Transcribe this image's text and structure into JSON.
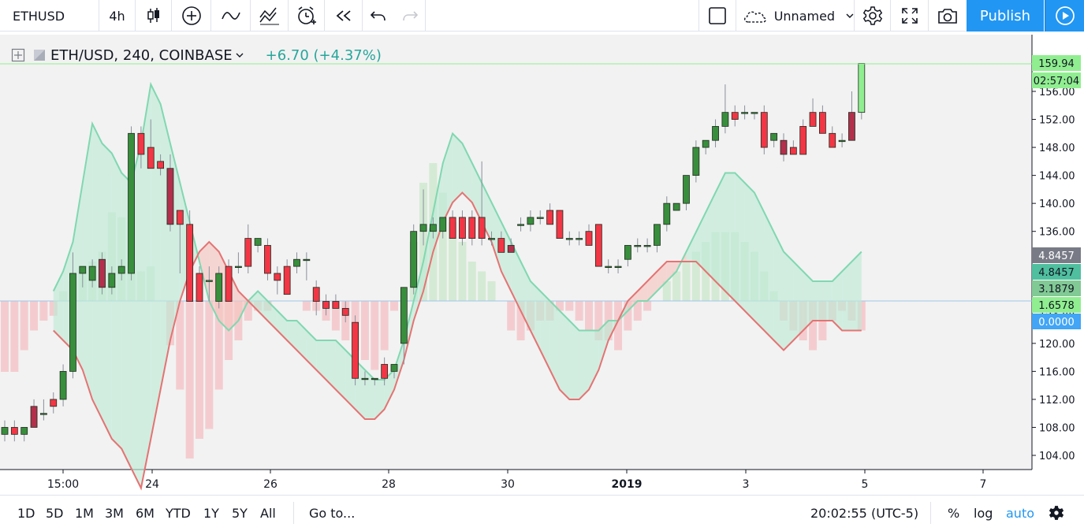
{
  "toolbar": {
    "symbol": "ETHUSD",
    "interval": "4h",
    "chart_name": "Unnamed",
    "publish_label": "Publish"
  },
  "legend": {
    "title": "ETH/USD, 240, COINBASE",
    "change": "+6.70 (+4.37%)"
  },
  "price_axis": {
    "ticks": [
      "104.00",
      "108.00",
      "112.00",
      "116.00",
      "120.00",
      "124.00",
      "128.00",
      "132.00",
      "136.00",
      "140.00",
      "144.00",
      "148.00",
      "152.00",
      "156.00"
    ],
    "tick_values": [
      104,
      108,
      112,
      116,
      120,
      124,
      128,
      132,
      136,
      140,
      144,
      148,
      152,
      156
    ],
    "last_price": "159.94",
    "countdown": "02:57:04"
  },
  "indicator_labels": [
    {
      "text": "4.8457",
      "bg": "#787b86",
      "value": 4.8457
    },
    {
      "text": "4.8457",
      "bg": "#4fbf9f",
      "value": 4.8457
    },
    {
      "text": "3.1879",
      "bg": "#81c995",
      "value": 3.1879
    },
    {
      "text": "1.6578",
      "bg": "#90ee90",
      "value": 1.6578
    },
    {
      "text": "0.0000",
      "bg": "#42a5f5",
      "value": 0
    }
  ],
  "time_axis": {
    "labels": [
      "15:00",
      "24",
      "26",
      "28",
      "30",
      "2019",
      "3",
      "5",
      "7"
    ],
    "bold": [
      false,
      false,
      false,
      false,
      false,
      true,
      false,
      false,
      false
    ]
  },
  "bottom": {
    "ranges": [
      "1D",
      "5D",
      "1M",
      "3M",
      "6M",
      "YTD",
      "1Y",
      "5Y",
      "All"
    ],
    "goto": "Go to...",
    "clock": "20:02:55 (UTC-5)",
    "percent": "%",
    "log": "log",
    "auto": "auto"
  },
  "colors": {
    "up": "#388e3c",
    "up_light": "#90ee90",
    "down": "#f23645",
    "down_dark": "#b2304b",
    "accent": "#2196f3",
    "green_line": "#80d8b0",
    "red_line": "#e57373"
  },
  "chart_data": {
    "type": "candlestick",
    "symbol": "ETH/USD",
    "interval": "240",
    "exchange": "COINBASE",
    "ylim": [
      102,
      162
    ],
    "candles": [
      {
        "o": 107,
        "h": 109,
        "l": 106,
        "c": 108
      },
      {
        "o": 108,
        "h": 109,
        "l": 106,
        "c": 107
      },
      {
        "o": 107,
        "h": 108,
        "l": 106,
        "c": 108
      },
      {
        "o": 111,
        "h": 112,
        "l": 108,
        "c": 108
      },
      {
        "o": 110,
        "h": 112,
        "l": 109,
        "c": 110
      },
      {
        "o": 112,
        "h": 113,
        "l": 110,
        "c": 111
      },
      {
        "o": 112,
        "h": 117,
        "l": 111,
        "c": 116
      },
      {
        "o": 116,
        "h": 133,
        "l": 115,
        "c": 130
      },
      {
        "o": 130,
        "h": 131,
        "l": 128,
        "c": 131
      },
      {
        "o": 129,
        "h": 132,
        "l": 128,
        "c": 131
      },
      {
        "o": 132,
        "h": 133,
        "l": 127,
        "c": 128
      },
      {
        "o": 128,
        "h": 131,
        "l": 127,
        "c": 130
      },
      {
        "o": 130,
        "h": 132,
        "l": 129,
        "c": 131
      },
      {
        "o": 130,
        "h": 151,
        "l": 129,
        "c": 150
      },
      {
        "o": 150,
        "h": 151,
        "l": 145,
        "c": 147
      },
      {
        "o": 148,
        "h": 152,
        "l": 145,
        "c": 145
      },
      {
        "o": 146,
        "h": 147,
        "l": 144,
        "c": 145
      },
      {
        "o": 145,
        "h": 147,
        "l": 136,
        "c": 137
      },
      {
        "o": 139,
        "h": 139,
        "l": 130,
        "c": 137
      },
      {
        "o": 137,
        "h": 139,
        "l": 126,
        "c": 126
      },
      {
        "o": 130,
        "h": 131,
        "l": 126,
        "c": 126
      },
      {
        "o": 129,
        "h": 131,
        "l": 126,
        "c": 129
      },
      {
        "o": 126,
        "h": 131,
        "l": 125,
        "c": 130
      },
      {
        "o": 131,
        "h": 132,
        "l": 126,
        "c": 126
      },
      {
        "o": 131,
        "h": 133,
        "l": 130,
        "c": 131
      },
      {
        "o": 135,
        "h": 137,
        "l": 130,
        "c": 131
      },
      {
        "o": 134,
        "h": 135,
        "l": 133,
        "c": 135
      },
      {
        "o": 134,
        "h": 135,
        "l": 129,
        "c": 130
      },
      {
        "o": 130,
        "h": 131,
        "l": 127,
        "c": 129
      },
      {
        "o": 131,
        "h": 132,
        "l": 127,
        "c": 127
      },
      {
        "o": 131,
        "h": 133,
        "l": 130,
        "c": 132
      },
      {
        "o": 132,
        "h": 133,
        "l": 129,
        "c": 132
      },
      {
        "o": 128,
        "h": 129,
        "l": 124,
        "c": 126
      },
      {
        "o": 126,
        "h": 127,
        "l": 124,
        "c": 125
      },
      {
        "o": 126,
        "h": 127,
        "l": 125,
        "c": 125
      },
      {
        "o": 125,
        "h": 126,
        "l": 123,
        "c": 124
      },
      {
        "o": 123,
        "h": 124,
        "l": 114,
        "c": 115
      },
      {
        "o": 115,
        "h": 116,
        "l": 114,
        "c": 115
      },
      {
        "o": 115,
        "h": 115,
        "l": 114,
        "c": 115
      },
      {
        "o": 117,
        "h": 118,
        "l": 114,
        "c": 115
      },
      {
        "o": 116,
        "h": 117,
        "l": 115,
        "c": 117
      },
      {
        "o": 120,
        "h": 128,
        "l": 117,
        "c": 128
      },
      {
        "o": 128,
        "h": 137,
        "l": 127,
        "c": 136
      },
      {
        "o": 136,
        "h": 142,
        "l": 134,
        "c": 137
      },
      {
        "o": 136,
        "h": 138,
        "l": 135,
        "c": 137
      },
      {
        "o": 136,
        "h": 138,
        "l": 135,
        "c": 138
      },
      {
        "o": 138,
        "h": 139,
        "l": 135,
        "c": 135
      },
      {
        "o": 138,
        "h": 139,
        "l": 134,
        "c": 135
      },
      {
        "o": 138,
        "h": 139,
        "l": 134,
        "c": 135
      },
      {
        "o": 138,
        "h": 146,
        "l": 134,
        "c": 135
      },
      {
        "o": 135,
        "h": 136,
        "l": 134,
        "c": 135
      },
      {
        "o": 135,
        "h": 136,
        "l": 133,
        "c": 133
      },
      {
        "o": 134,
        "h": 135,
        "l": 133,
        "c": 133
      },
      {
        "o": 137,
        "h": 138,
        "l": 136,
        "c": 137
      },
      {
        "o": 137,
        "h": 139,
        "l": 136,
        "c": 138
      },
      {
        "o": 138,
        "h": 139,
        "l": 137,
        "c": 138
      },
      {
        "o": 139,
        "h": 140,
        "l": 137,
        "c": 137
      },
      {
        "o": 139,
        "h": 139,
        "l": 135,
        "c": 135
      },
      {
        "o": 135,
        "h": 136,
        "l": 134,
        "c": 135
      },
      {
        "o": 135,
        "h": 136,
        "l": 134,
        "c": 135
      },
      {
        "o": 136,
        "h": 137,
        "l": 134,
        "c": 134
      },
      {
        "o": 137,
        "h": 137,
        "l": 131,
        "c": 131
      },
      {
        "o": 131,
        "h": 132,
        "l": 130,
        "c": 131
      },
      {
        "o": 131,
        "h": 132,
        "l": 130,
        "c": 131
      },
      {
        "o": 132,
        "h": 134,
        "l": 131,
        "c": 134
      },
      {
        "o": 134,
        "h": 135,
        "l": 133,
        "c": 134
      },
      {
        "o": 134,
        "h": 135,
        "l": 133,
        "c": 134
      },
      {
        "o": 134,
        "h": 137,
        "l": 133,
        "c": 137
      },
      {
        "o": 137,
        "h": 141,
        "l": 136,
        "c": 140
      },
      {
        "o": 139,
        "h": 140,
        "l": 139,
        "c": 140
      },
      {
        "o": 140,
        "h": 144,
        "l": 139,
        "c": 144
      },
      {
        "o": 144,
        "h": 149,
        "l": 143,
        "c": 148
      },
      {
        "o": 148,
        "h": 149,
        "l": 147,
        "c": 149
      },
      {
        "o": 149,
        "h": 152,
        "l": 148,
        "c": 151
      },
      {
        "o": 151,
        "h": 157,
        "l": 150,
        "c": 153
      },
      {
        "o": 153,
        "h": 154,
        "l": 151,
        "c": 152
      },
      {
        "o": 153,
        "h": 154,
        "l": 152,
        "c": 153
      },
      {
        "o": 153,
        "h": 153,
        "l": 152,
        "c": 153
      },
      {
        "o": 153,
        "h": 154,
        "l": 147,
        "c": 148
      },
      {
        "o": 149,
        "h": 150,
        "l": 148,
        "c": 150
      },
      {
        "o": 149,
        "h": 150,
        "l": 146,
        "c": 147
      },
      {
        "o": 148,
        "h": 149,
        "l": 147,
        "c": 147
      },
      {
        "o": 151,
        "h": 152,
        "l": 147,
        "c": 147
      },
      {
        "o": 153,
        "h": 155,
        "l": 151,
        "c": 151
      },
      {
        "o": 153,
        "h": 154,
        "l": 150,
        "c": 150
      },
      {
        "o": 150,
        "h": 151,
        "l": 148,
        "c": 148
      },
      {
        "o": 149,
        "h": 150,
        "l": 148,
        "c": 149
      },
      {
        "o": 153,
        "h": 156,
        "l": 149,
        "c": 149
      },
      {
        "o": 153,
        "h": 160,
        "l": 152,
        "c": 160
      }
    ],
    "histogram": [
      -7.2,
      -7.2,
      -5,
      -3,
      -2,
      -1.5,
      1,
      2,
      3,
      4,
      5,
      9,
      8.5,
      4,
      3,
      3.5,
      0,
      -4.5,
      -9,
      -16,
      -14,
      -13,
      -9,
      -6,
      -4,
      -2,
      -1,
      -1,
      0,
      0,
      0,
      -1,
      -1,
      -2,
      -3,
      -4,
      -5,
      -6,
      -7,
      -5,
      -1,
      0,
      6,
      12,
      14,
      11,
      8,
      6,
      4,
      3,
      2,
      0,
      -3,
      -4,
      -3,
      -2,
      -2,
      -1,
      -1,
      -2,
      -3,
      -4,
      -4,
      -5,
      -3,
      -2,
      -1,
      0,
      2,
      3,
      4,
      5,
      6,
      7,
      7,
      7,
      6,
      5,
      3,
      1,
      -2,
      -3,
      -4,
      -5,
      -4,
      -2,
      -1,
      -2,
      -3
    ],
    "osc_green": [
      null,
      null,
      null,
      null,
      null,
      1,
      3,
      6,
      12,
      18,
      16,
      15,
      13,
      12,
      16,
      22,
      20,
      16,
      12,
      8,
      4,
      0,
      -2,
      -3,
      -2,
      0,
      1,
      0,
      -1,
      -2,
      -2,
      -3,
      -4,
      -4,
      -4,
      -5,
      -6,
      -7,
      -8,
      -8,
      -7,
      -4,
      0,
      4,
      9,
      14,
      17,
      16,
      14,
      12,
      10,
      8,
      6,
      4,
      2,
      1,
      0,
      -1,
      -2,
      -3,
      -3,
      -3,
      -2,
      -2,
      -1,
      0,
      0,
      1,
      2,
      3,
      5,
      7,
      9,
      11,
      13,
      13,
      12,
      11,
      9,
      7,
      5,
      4,
      3,
      2,
      2,
      2,
      3,
      4,
      5
    ],
    "osc_red": [
      null,
      null,
      null,
      null,
      null,
      -3,
      -4,
      -5,
      -7,
      -10,
      -12,
      -14,
      -15,
      -17,
      -19,
      -14,
      -9,
      -4,
      0,
      3,
      5,
      6,
      5,
      3,
      1,
      0,
      -1,
      -2,
      -3,
      -4,
      -5,
      -6,
      -7,
      -8,
      -9,
      -10,
      -11,
      -12,
      -12,
      -11,
      -9,
      -6,
      -2,
      1,
      5,
      8,
      10,
      11,
      10,
      8,
      6,
      3,
      1,
      -1,
      -3,
      -5,
      -7,
      -9,
      -10,
      -10,
      -9,
      -7,
      -4,
      -2,
      0,
      1,
      2,
      3,
      4,
      4,
      4,
      4,
      3,
      2,
      1,
      0,
      -1,
      -2,
      -3,
      -4,
      -5,
      -4,
      -3,
      -2,
      -2,
      -2,
      -3,
      -3,
      -3
    ]
  }
}
